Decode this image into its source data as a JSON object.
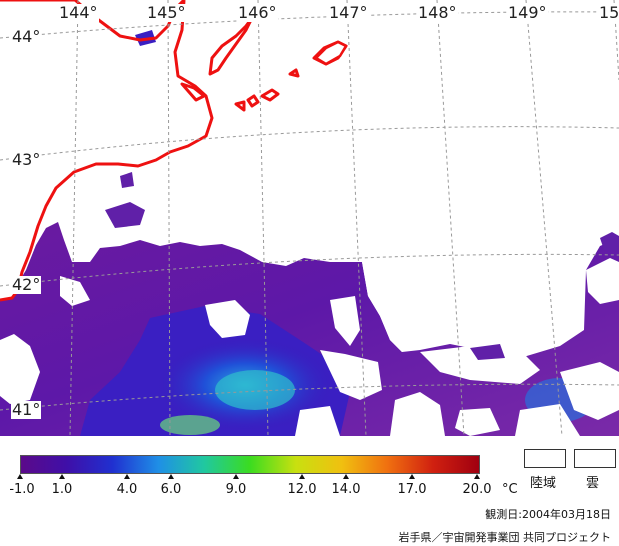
{
  "map": {
    "longitudes": [
      "144°",
      "145°",
      "146°",
      "147°",
      "148°",
      "149°",
      "15"
    ],
    "latitudes": [
      "44°",
      "43°",
      "42°",
      "41°"
    ],
    "colors": {
      "coastline": "#ee1111",
      "land": "#ffffff",
      "cloud": "#ffffff",
      "grid": "#999999"
    }
  },
  "legend": {
    "color_stops": [
      "#5b0a8a",
      "#3f0fa8",
      "#2030d0",
      "#1f8fe6",
      "#20c8a0",
      "#3bdc20",
      "#c8e010",
      "#f0c010",
      "#f07010",
      "#d02010",
      "#a00010"
    ],
    "tick_labels": [
      "-1.0",
      "1.0",
      "4.0",
      "6.0",
      "9.0",
      "12.0",
      "14.0",
      "17.0",
      "20.0"
    ],
    "unit": "°C",
    "land_label": "陸域",
    "cloud_label": "雲"
  },
  "observation_date": "観測日:2004年03月18日",
  "credit": "岩手県／宇宙開発事業団 共同プロジェクト"
}
